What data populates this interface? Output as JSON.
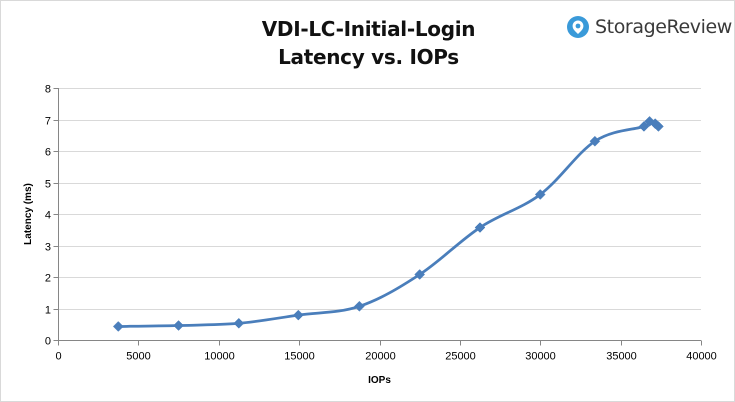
{
  "brand": {
    "name": "StorageReview",
    "icon": "storagereview-logo-icon",
    "accent": "#3a9ad9"
  },
  "chart_data": {
    "type": "scatter",
    "title": "VDI-LC-Initial-Login",
    "subtitle": "Latency vs. IOPs",
    "xlabel": "IOPs",
    "ylabel": "Latency (ms)",
    "xlim": [
      0,
      40000
    ],
    "ylim": [
      0,
      8
    ],
    "xticks": [
      0,
      5000,
      10000,
      15000,
      20000,
      25000,
      30000,
      35000,
      40000
    ],
    "yticks": [
      0,
      1,
      2,
      3,
      4,
      5,
      6,
      7,
      8
    ],
    "grid": "horizontal",
    "legend": "none",
    "line": "smooth",
    "color": "#4a7ebb",
    "series": [
      {
        "x": [
          3750,
          7500,
          11250,
          14950,
          18750,
          22500,
          26250,
          30000,
          33400,
          36450,
          36800,
          37150,
          37350
        ],
        "y": [
          0.43,
          0.46,
          0.53,
          0.79,
          1.07,
          2.08,
          3.57,
          4.62,
          6.31,
          6.78,
          6.94,
          6.87,
          6.78
        ]
      }
    ]
  }
}
